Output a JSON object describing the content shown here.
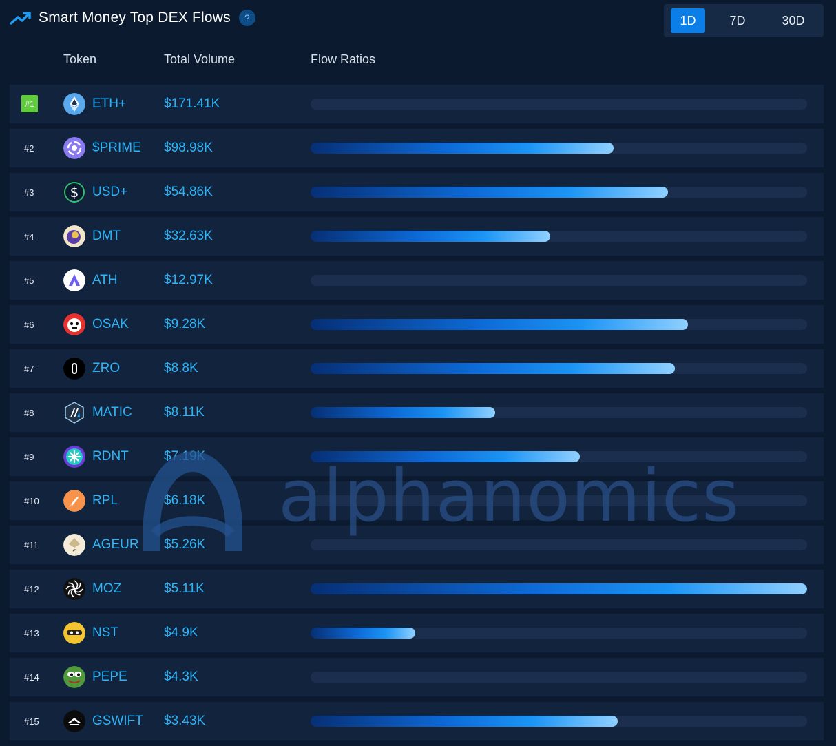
{
  "header": {
    "title": "Smart Money Top DEX Flows",
    "help": "?",
    "periods": [
      "1D",
      "7D",
      "30D"
    ],
    "active_period": "1D"
  },
  "columns": {
    "token": "Token",
    "volume": "Total Volume",
    "flow": "Flow Ratios"
  },
  "colors": {
    "accent": "#0b7ee8",
    "token_text": "#2eb3f5",
    "rank_badge": "#5fcd3b",
    "row_bg": "#12233d",
    "page_bg": "#0b1a2e"
  },
  "rows": [
    {
      "rank": "#1",
      "token": "ETH+",
      "volume": "$171.41K",
      "flow_ratio": 0,
      "icon": "eth-plus-icon"
    },
    {
      "rank": "#2",
      "token": "$PRIME",
      "volume": "$98.98K",
      "flow_ratio": 0.61,
      "icon": "prime-icon"
    },
    {
      "rank": "#3",
      "token": "USD+",
      "volume": "$54.86K",
      "flow_ratio": 0.72,
      "icon": "usd-plus-icon"
    },
    {
      "rank": "#4",
      "token": "DMT",
      "volume": "$32.63K",
      "flow_ratio": 0.483,
      "icon": "dmt-icon"
    },
    {
      "rank": "#5",
      "token": "ATH",
      "volume": "$12.97K",
      "flow_ratio": 0,
      "icon": "ath-icon"
    },
    {
      "rank": "#6",
      "token": "OSAK",
      "volume": "$9.28K",
      "flow_ratio": 0.76,
      "icon": "osak-icon"
    },
    {
      "rank": "#7",
      "token": "ZRO",
      "volume": "$8.8K",
      "flow_ratio": 0.734,
      "icon": "zro-icon"
    },
    {
      "rank": "#8",
      "token": "MATIC",
      "volume": "$8.11K",
      "flow_ratio": 0.372,
      "icon": "matic-icon"
    },
    {
      "rank": "#9",
      "token": "RDNT",
      "volume": "$7.19K",
      "flow_ratio": 0.542,
      "icon": "rdnt-icon"
    },
    {
      "rank": "#10",
      "token": "RPL",
      "volume": "$6.18K",
      "flow_ratio": 0,
      "icon": "rpl-icon"
    },
    {
      "rank": "#11",
      "token": "AGEUR",
      "volume": "$5.26K",
      "flow_ratio": 0,
      "icon": "ageur-icon"
    },
    {
      "rank": "#12",
      "token": "MOZ",
      "volume": "$5.11K",
      "flow_ratio": 1.0,
      "icon": "moz-icon"
    },
    {
      "rank": "#13",
      "token": "NST",
      "volume": "$4.9K",
      "flow_ratio": 0.211,
      "icon": "nst-icon"
    },
    {
      "rank": "#14",
      "token": "PEPE",
      "volume": "$4.3K",
      "flow_ratio": 0,
      "icon": "pepe-icon"
    },
    {
      "rank": "#15",
      "token": "GSWIFT",
      "volume": "$3.43K",
      "flow_ratio": 0.618,
      "icon": "gswift-icon"
    }
  ],
  "watermark": {
    "text": "alphanomics"
  }
}
